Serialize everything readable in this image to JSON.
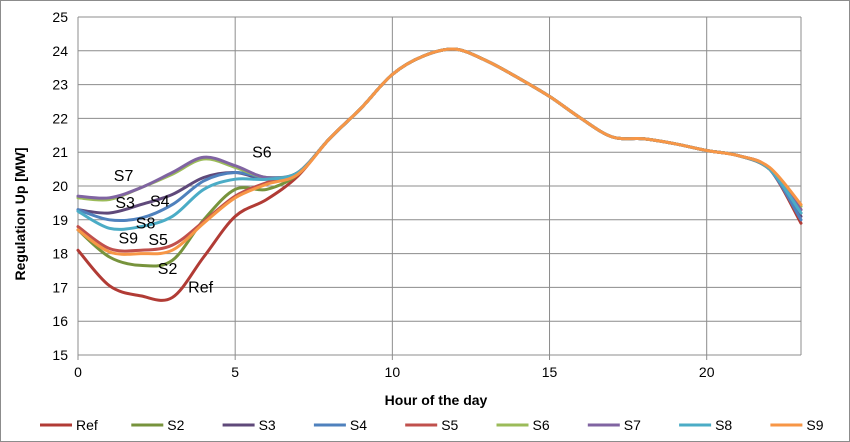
{
  "chart_data": {
    "type": "line",
    "title": "",
    "xlabel": "Hour of the day",
    "ylabel": "Regulation Up  [MW]",
    "xlim": [
      0,
      23
    ],
    "ylim": [
      15,
      25
    ],
    "x_ticks": [
      0,
      5,
      10,
      15,
      20
    ],
    "y_ticks": [
      15,
      16,
      17,
      18,
      19,
      20,
      21,
      22,
      23,
      24,
      25
    ],
    "grid": true,
    "legend_position": "bottom",
    "x": [
      0,
      1,
      2,
      3,
      4,
      5,
      6,
      7,
      8,
      9,
      10,
      11,
      12,
      13,
      14,
      15,
      16,
      17,
      18,
      19,
      20,
      21,
      22,
      23
    ],
    "series": [
      {
        "name": "Ref",
        "color": "#b13b35",
        "values": [
          18.1,
          17.05,
          16.75,
          16.7,
          17.9,
          19.1,
          19.6,
          20.3,
          21.4,
          22.3,
          23.3,
          23.85,
          24.05,
          23.7,
          23.2,
          22.65,
          22.0,
          21.45,
          21.4,
          21.25,
          21.05,
          20.9,
          20.5,
          18.9
        ]
      },
      {
        "name": "S2",
        "color": "#77933c",
        "values": [
          18.7,
          17.9,
          17.65,
          17.8,
          19.0,
          19.9,
          19.9,
          20.35,
          21.4,
          22.3,
          23.3,
          23.85,
          24.05,
          23.7,
          23.2,
          22.65,
          22.0,
          21.45,
          21.4,
          21.25,
          21.05,
          20.9,
          20.5,
          19.2
        ]
      },
      {
        "name": "S3",
        "color": "#5f497a",
        "values": [
          19.3,
          19.2,
          19.45,
          19.75,
          20.25,
          20.4,
          20.2,
          20.4,
          21.4,
          22.3,
          23.3,
          23.85,
          24.05,
          23.7,
          23.2,
          22.65,
          22.0,
          21.45,
          21.4,
          21.25,
          21.05,
          20.9,
          20.5,
          19.1
        ]
      },
      {
        "name": "S4",
        "color": "#4f81bd",
        "values": [
          19.3,
          19.0,
          19.05,
          19.45,
          20.15,
          20.4,
          20.25,
          20.4,
          21.4,
          22.3,
          23.3,
          23.85,
          24.05,
          23.7,
          23.2,
          22.65,
          22.0,
          21.45,
          21.4,
          21.25,
          21.05,
          20.9,
          20.5,
          19.0
        ]
      },
      {
        "name": "S5",
        "color": "#c0504d",
        "values": [
          18.8,
          18.15,
          18.1,
          18.25,
          18.95,
          19.7,
          20.1,
          20.4,
          21.4,
          22.3,
          23.3,
          23.85,
          24.05,
          23.7,
          23.2,
          22.65,
          22.0,
          21.45,
          21.4,
          21.25,
          21.05,
          20.9,
          20.5,
          19.3
        ]
      },
      {
        "name": "S6",
        "color": "#9bbb59",
        "values": [
          19.65,
          19.6,
          19.95,
          20.35,
          20.8,
          20.55,
          20.25,
          20.4,
          21.4,
          22.3,
          23.3,
          23.85,
          24.05,
          23.7,
          23.2,
          22.65,
          22.0,
          21.45,
          21.4,
          21.25,
          21.05,
          20.9,
          20.5,
          19.4
        ]
      },
      {
        "name": "S7",
        "color": "#8064a2",
        "values": [
          19.7,
          19.65,
          19.95,
          20.4,
          20.85,
          20.6,
          20.25,
          20.4,
          21.4,
          22.3,
          23.3,
          23.85,
          24.05,
          23.7,
          23.2,
          22.65,
          22.0,
          21.45,
          21.4,
          21.25,
          21.05,
          20.9,
          20.5,
          19.3
        ]
      },
      {
        "name": "S8",
        "color": "#4bacc6",
        "values": [
          19.25,
          18.75,
          18.8,
          19.1,
          19.9,
          20.2,
          20.2,
          20.4,
          21.4,
          22.3,
          23.3,
          23.85,
          24.05,
          23.7,
          23.2,
          22.65,
          22.0,
          21.45,
          21.4,
          21.25,
          21.05,
          20.9,
          20.5,
          19.2
        ]
      },
      {
        "name": "S9",
        "color": "#f79646",
        "values": [
          18.7,
          18.05,
          18.0,
          18.1,
          18.9,
          19.65,
          20.05,
          20.35,
          21.4,
          22.3,
          23.3,
          23.85,
          24.05,
          23.7,
          23.2,
          22.65,
          22.0,
          21.45,
          21.4,
          21.25,
          21.05,
          20.9,
          20.55,
          19.45
        ]
      }
    ],
    "annotations": [
      {
        "text": "S6",
        "x": 5.85,
        "y": 20.85
      },
      {
        "text": "S7",
        "x": 1.45,
        "y": 20.15
      },
      {
        "text": "S3",
        "x": 1.5,
        "y": 19.35
      },
      {
        "text": "S4",
        "x": 2.6,
        "y": 19.4
      },
      {
        "text": "S8",
        "x": 2.15,
        "y": 18.75
      },
      {
        "text": "S9",
        "x": 1.6,
        "y": 18.3
      },
      {
        "text": "S5",
        "x": 2.55,
        "y": 18.25
      },
      {
        "text": "S2",
        "x": 2.85,
        "y": 17.4
      },
      {
        "text": "Ref",
        "x": 3.9,
        "y": 16.85
      }
    ]
  }
}
